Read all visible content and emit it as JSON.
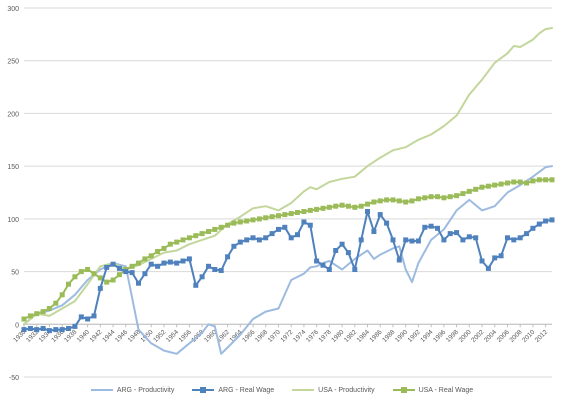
{
  "chart_data": {
    "type": "line",
    "title": "",
    "xlabel": "",
    "ylabel": "",
    "ylim": [
      -50,
      300
    ],
    "yticks": [
      -50,
      0,
      50,
      100,
      150,
      200,
      250,
      300
    ],
    "ytick_labels": [
      "-50",
      "0",
      "50",
      "100",
      "150",
      "200",
      "250",
      "300"
    ],
    "xlim": [
      1930,
      2013
    ],
    "xtick_labels": [
      "1930",
      "1932",
      "1934",
      "1936",
      "1938",
      "1940",
      "1942",
      "1944",
      "1946",
      "1948",
      "1950",
      "1952",
      "1954",
      "1956",
      "1958",
      "1960",
      "1962",
      "1964",
      "1966",
      "1968",
      "1970",
      "1972",
      "1974",
      "1976",
      "1978",
      "1980",
      "1982",
      "1984",
      "1986",
      "1988",
      "1990",
      "1992",
      "1994",
      "1996",
      "1998",
      "2000",
      "2002",
      "2004",
      "2006",
      "2008",
      "2010",
      "2012"
    ],
    "grid": "horizontal",
    "legend_position": "bottom",
    "series": [
      {
        "name": "ARG - Productivity",
        "color": "#9dbbe0",
        "marker": "none",
        "x": [
          1930,
          1932,
          1934,
          1936,
          1938,
          1940,
          1942,
          1944,
          1946,
          1948,
          1950,
          1952,
          1954,
          1956,
          1958,
          1959,
          1960,
          1961,
          1962,
          1964,
          1966,
          1968,
          1970,
          1972,
          1974,
          1975,
          1976,
          1977,
          1978,
          1980,
          1982,
          1984,
          1985,
          1986,
          1988,
          1989,
          1990,
          1991,
          1992,
          1994,
          1996,
          1998,
          2000,
          2002,
          2004,
          2006,
          2008,
          2010,
          2012,
          2013
        ],
        "values": [
          0,
          10,
          13,
          18,
          28,
          42,
          52,
          58,
          55,
          -5,
          -18,
          -25,
          -28,
          -18,
          -8,
          0,
          -2,
          -28,
          -22,
          -10,
          5,
          12,
          15,
          42,
          48,
          54,
          55,
          58,
          60,
          52,
          62,
          70,
          62,
          66,
          72,
          74,
          52,
          40,
          58,
          80,
          90,
          108,
          118,
          108,
          112,
          125,
          132,
          140,
          149,
          150
        ]
      },
      {
        "name": "ARG - Real Wage",
        "color": "#4f81bd",
        "marker": "square",
        "x": [
          1930,
          1931,
          1932,
          1933,
          1934,
          1935,
          1936,
          1937,
          1938,
          1939,
          1940,
          1941,
          1942,
          1943,
          1944,
          1945,
          1946,
          1947,
          1948,
          1949,
          1950,
          1951,
          1952,
          1953,
          1954,
          1955,
          1956,
          1957,
          1958,
          1959,
          1960,
          1961,
          1962,
          1963,
          1964,
          1965,
          1966,
          1967,
          1968,
          1969,
          1970,
          1971,
          1972,
          1973,
          1974,
          1975,
          1976,
          1977,
          1978,
          1979,
          1980,
          1981,
          1982,
          1983,
          1984,
          1985,
          1986,
          1987,
          1988,
          1989,
          1990,
          1991,
          1992,
          1993,
          1994,
          1995,
          1996,
          1997,
          1998,
          1999,
          2000,
          2001,
          2002,
          2003,
          2004,
          2005,
          2006,
          2007,
          2008,
          2009,
          2010,
          2011,
          2012,
          2013
        ],
        "values": [
          -5,
          -4,
          -5,
          -4,
          -6,
          -5,
          -5,
          -4,
          -2,
          7,
          5,
          8,
          34,
          54,
          57,
          53,
          50,
          49,
          39,
          48,
          57,
          55,
          58,
          59,
          58,
          60,
          62,
          37,
          45,
          55,
          52,
          51,
          64,
          74,
          78,
          80,
          82,
          80,
          82,
          86,
          90,
          92,
          82,
          85,
          97,
          94,
          60,
          56,
          52,
          70,
          76,
          68,
          52,
          80,
          107,
          88,
          104,
          96,
          80,
          61,
          80,
          79,
          79,
          92,
          93,
          91,
          80,
          86,
          87,
          80,
          83,
          82,
          60,
          53,
          63,
          65,
          82,
          80,
          82,
          86,
          91,
          95,
          98,
          99
        ]
      },
      {
        "name": "USA - Productivity",
        "color": "#c3d69b",
        "marker": "none",
        "x": [
          1930,
          1932,
          1934,
          1936,
          1938,
          1940,
          1942,
          1944,
          1946,
          1948,
          1950,
          1952,
          1954,
          1956,
          1958,
          1960,
          1962,
          1964,
          1966,
          1968,
          1970,
          1972,
          1974,
          1975,
          1976,
          1978,
          1980,
          1982,
          1984,
          1986,
          1988,
          1990,
          1992,
          1994,
          1996,
          1998,
          2000,
          2002,
          2004,
          2006,
          2007,
          2008,
          2010,
          2011,
          2012,
          2013
        ],
        "values": [
          0,
          10,
          8,
          15,
          22,
          38,
          55,
          58,
          52,
          56,
          62,
          68,
          70,
          76,
          80,
          84,
          95,
          102,
          110,
          112,
          108,
          115,
          126,
          130,
          128,
          135,
          138,
          140,
          150,
          158,
          165,
          168,
          175,
          180,
          188,
          198,
          218,
          232,
          248,
          257,
          264,
          263,
          270,
          276,
          280,
          281
        ]
      },
      {
        "name": "USA - Real Wage",
        "color": "#9bbb59",
        "marker": "square",
        "x": [
          1930,
          1931,
          1932,
          1933,
          1934,
          1935,
          1936,
          1937,
          1938,
          1939,
          1940,
          1941,
          1942,
          1943,
          1944,
          1945,
          1946,
          1947,
          1948,
          1949,
          1950,
          1951,
          1952,
          1953,
          1954,
          1955,
          1956,
          1957,
          1958,
          1959,
          1960,
          1961,
          1962,
          1963,
          1964,
          1965,
          1966,
          1967,
          1968,
          1969,
          1970,
          1971,
          1972,
          1973,
          1974,
          1975,
          1976,
          1977,
          1978,
          1979,
          1980,
          1981,
          1982,
          1983,
          1984,
          1985,
          1986,
          1987,
          1988,
          1989,
          1990,
          1991,
          1992,
          1993,
          1994,
          1995,
          1996,
          1997,
          1998,
          1999,
          2000,
          2001,
          2002,
          2003,
          2004,
          2005,
          2006,
          2007,
          2008,
          2009,
          2010,
          2011,
          2012,
          2013
        ],
        "values": [
          5,
          8,
          10,
          12,
          15,
          20,
          28,
          38,
          45,
          50,
          52,
          48,
          44,
          40,
          42,
          47,
          52,
          55,
          58,
          62,
          65,
          69,
          72,
          76,
          78,
          80,
          82,
          84,
          86,
          88,
          90,
          92,
          94,
          96,
          97,
          98,
          99,
          100,
          101,
          102,
          103,
          104,
          105,
          106,
          107,
          108,
          109,
          110,
          111,
          112,
          113,
          112,
          111,
          112,
          114,
          116,
          117,
          118,
          118,
          117,
          116,
          117,
          119,
          120,
          121,
          121,
          120,
          121,
          122,
          124,
          126,
          128,
          130,
          131,
          132,
          133,
          134,
          135,
          135,
          134,
          136,
          137,
          137,
          137
        ]
      }
    ]
  }
}
